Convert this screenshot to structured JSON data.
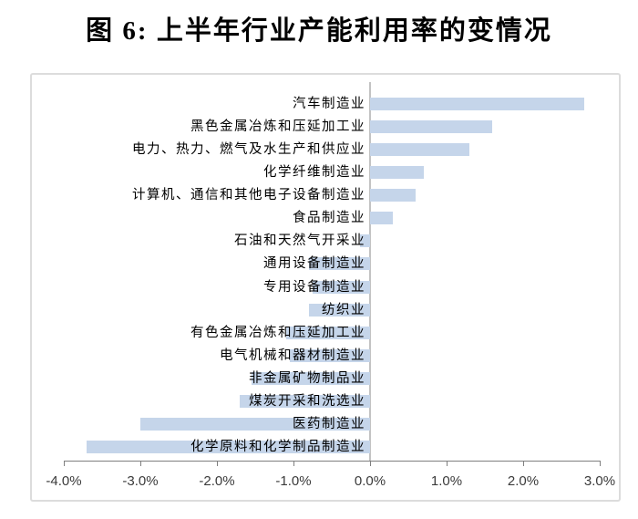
{
  "title": "图 6: 上半年行业产能利用率的变情况",
  "colors": {
    "bar_fill": "#c5d5ea",
    "axis_line": "#7f7f7f",
    "zero_line": "#c3c3c3",
    "chart_border": "#dcdcdc",
    "tick_text": "#3a3a3a",
    "label_text": "#000000"
  },
  "chart_data": {
    "type": "bar",
    "orientation": "horizontal",
    "title": "图 6: 上半年行业产能利用率的变情况",
    "value_unit": "%",
    "grid": false,
    "legend": null,
    "categories": [
      "汽车制造业",
      "黑色金属冶炼和压延加工业",
      "电力、热力、燃气及水生产和供应业",
      "化学纤维制造业",
      "计算机、通信和其他电子设备制造业",
      "食品制造业",
      "石油和天然气开采业",
      "通用设备制造业",
      "专用设备制造业",
      "纺织业",
      "有色金属冶炼和压延加工业",
      "电气机械和器材制造业",
      "非金属矿物制品业",
      "煤炭开采和洗选业",
      "医药制造业",
      "化学原料和化学制品制造业"
    ],
    "values": [
      2.8,
      1.6,
      1.3,
      0.7,
      0.6,
      0.3,
      -0.13,
      -0.8,
      -0.75,
      -0.8,
      -1.1,
      -1.05,
      -1.55,
      -1.7,
      -3.0,
      -3.7
    ],
    "x_ticks": [
      "-4.0%",
      "-3.0%",
      "-2.0%",
      "-1.0%",
      "0.0%",
      "1.0%",
      "2.0%",
      "3.0%"
    ],
    "x_tick_values": [
      -4,
      -3,
      -2,
      -1,
      0,
      1,
      2,
      3
    ],
    "xlim": [
      -4.4,
      3.3
    ]
  }
}
